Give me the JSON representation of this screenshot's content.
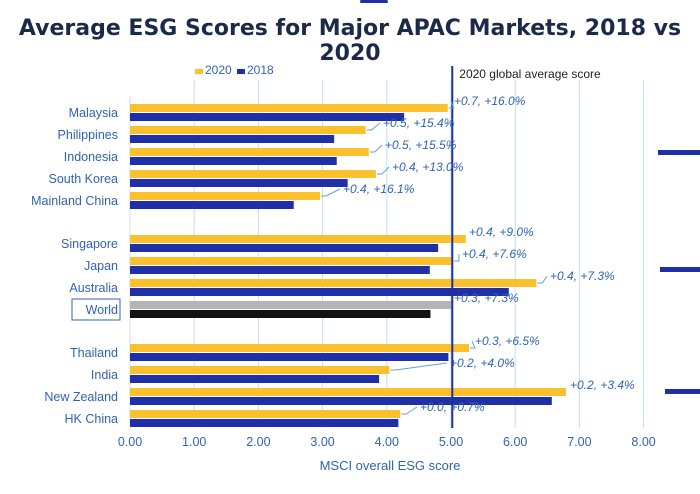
{
  "title": "Average ESG Scores for Major APAC Markets, 2018 vs 2020",
  "colors": {
    "y2020": "#fbc02d",
    "y2018": "#1f2fa8",
    "world2020": "#b4b4b4",
    "world2018": "#111111",
    "grid": "#bfe2ee",
    "ref": "#1f2fa8",
    "text": "#2f63b8"
  },
  "chart_data": {
    "type": "bar",
    "orientation": "horizontal",
    "title": "Average ESG Scores for Major APAC Markets, 2018 vs 2020",
    "xlabel": "MSCI overall ESG score",
    "ylabel": "",
    "xlim": [
      0,
      8
    ],
    "xticks": [
      "0.00",
      "1.00",
      "2.00",
      "3.00",
      "4.00",
      "5.00",
      "6.00",
      "7.00",
      "8.00"
    ],
    "grid": true,
    "legend": {
      "position": "top-left",
      "entries": [
        "2020",
        "2018"
      ]
    },
    "reference_line": {
      "label": "2020 global average score",
      "value": 5.02
    },
    "categories": [
      "Malaysia",
      "Philippines",
      "Indonesia",
      "South Korea",
      "Mainland China",
      "Singapore",
      "Japan",
      "Australia",
      "World",
      "Thailand",
      "India",
      "New Zealand",
      "HK China"
    ],
    "series": [
      {
        "name": "2020",
        "values": [
          4.95,
          3.67,
          3.72,
          3.83,
          2.96,
          5.23,
          5.03,
          6.33,
          5.02,
          5.28,
          4.04,
          6.79,
          4.21
        ]
      },
      {
        "name": "2018",
        "values": [
          4.27,
          3.18,
          3.22,
          3.39,
          2.55,
          4.8,
          4.67,
          5.9,
          4.68,
          4.96,
          3.88,
          6.57,
          4.18
        ]
      }
    ],
    "annotations": [
      "+0.7, +16.0%",
      "+0.5, +15.4%",
      "+0.5, +15.5%",
      "+0.4, +13.0%",
      "+0.4, +16.1%",
      "+0.4, +9.0%",
      "+0.4, +7.6%",
      "+0.4, +7.3%",
      "+0.3, +7.3%",
      "+0.3, +6.5%",
      "+0.2, +4.0%",
      "+0.2, +3.4%",
      "+0.0, +0.7%"
    ]
  }
}
